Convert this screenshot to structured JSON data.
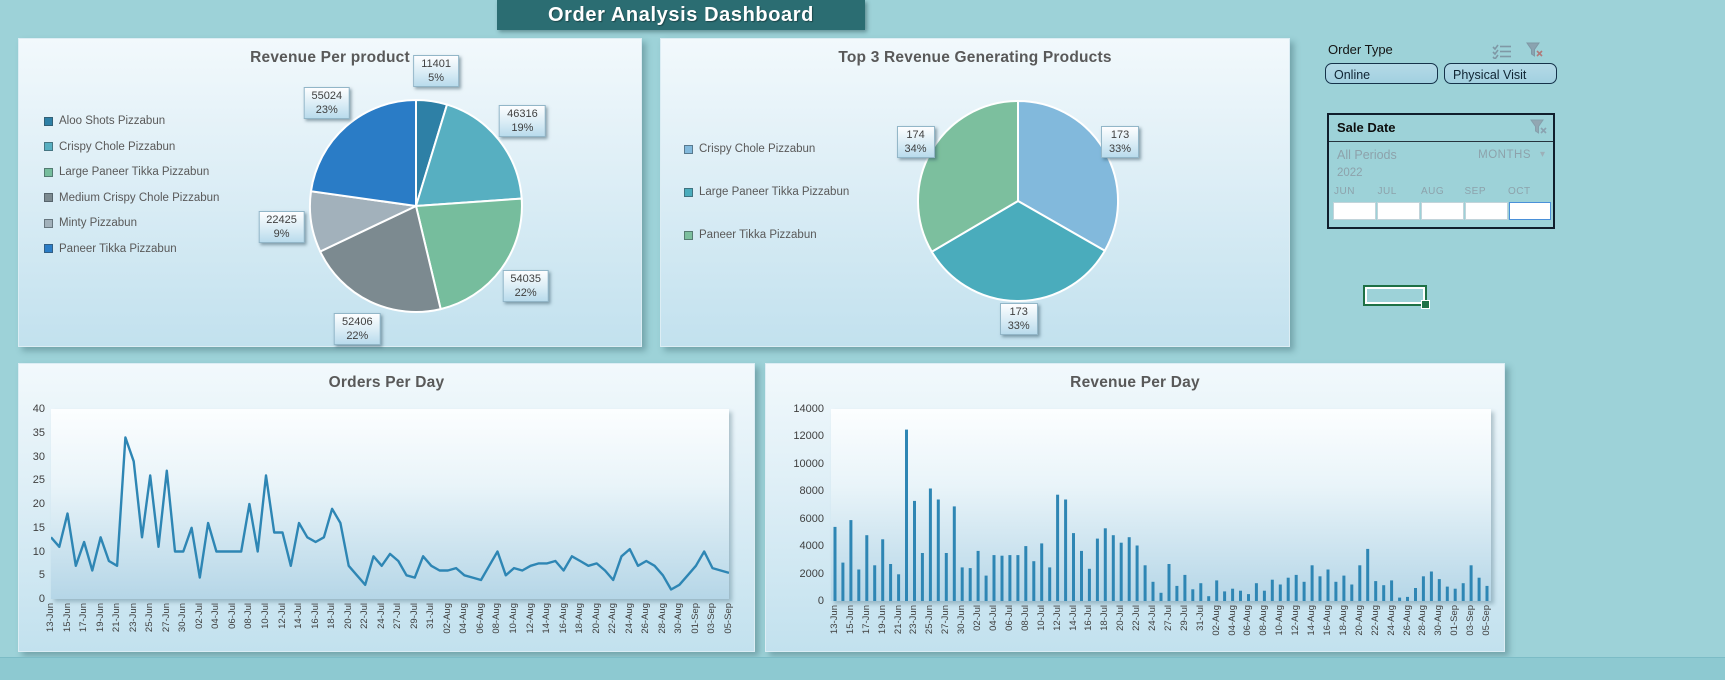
{
  "page": {
    "title": "Order Analysis Dashboard"
  },
  "colors": {
    "page_background": "#9dd2d8",
    "title_bar": "#2b6d72",
    "series_blue": "#2e86b4",
    "selection_green": "#1e7145"
  },
  "slicers": {
    "order_type": {
      "title": "Order Type",
      "buttons": [
        {
          "label": "Online",
          "selected": true
        },
        {
          "label": "Physical Visit",
          "selected": true
        }
      ]
    },
    "sale_date": {
      "title": "Sale Date",
      "period_label": "All Periods",
      "granularity": "MONTHS",
      "dropdown_arrow": "▾",
      "year": "2022",
      "months": [
        "JUN",
        "JUL",
        "AUG",
        "SEP",
        "OCT"
      ]
    }
  },
  "chart_data": [
    {
      "id": "revenue-per-product",
      "type": "pie",
      "title": "Revenue Per product",
      "categories": [
        "Aloo Shots Pizzabun",
        "Crispy Chole Pizzabun",
        "Large Paneer Tikka Pizzabun",
        "Medium Crispy Chole Pizzabun",
        "Minty Pizzabun",
        "Paneer Tikka Pizzabun"
      ],
      "values": [
        11401,
        46316,
        54035,
        52406,
        22425,
        55024
      ],
      "point_labels": [
        {
          "value": "11401",
          "pct": "5%"
        },
        {
          "value": "46316",
          "pct": "19%"
        },
        {
          "value": "54035",
          "pct": "22%"
        },
        {
          "value": "52406",
          "pct": "22%"
        },
        {
          "value": "22425",
          "pct": "9%"
        },
        {
          "value": "55024",
          "pct": "23%"
        }
      ],
      "colors": [
        "#2e80a6",
        "#57afc1",
        "#76bd9d",
        "#7c8a90",
        "#a2b1bb",
        "#2a7cc6"
      ],
      "legend_position": "left"
    },
    {
      "id": "top-3-revenue-generating-products",
      "type": "pie",
      "title": "Top 3 Revenue Generating Products",
      "categories": [
        "Crispy Chole Pizzabun",
        "Large Paneer Tikka Pizzabun",
        "Paneer Tikka Pizzabun"
      ],
      "values": [
        173,
        173,
        174
      ],
      "point_labels": [
        {
          "value": "173",
          "pct": "33%"
        },
        {
          "value": "173",
          "pct": "33%"
        },
        {
          "value": "174",
          "pct": "34%"
        }
      ],
      "colors": [
        "#82b9dc",
        "#4aacbc",
        "#7cbf9e"
      ],
      "legend_position": "left"
    },
    {
      "id": "orders-per-day",
      "type": "line",
      "title": "Orders Per Day",
      "x_labels": [
        "13-Jun",
        "15-Jun",
        "17-Jun",
        "19-Jun",
        "21-Jun",
        "23-Jun",
        "25-Jun",
        "27-Jun",
        "30-Jun",
        "02-Jul",
        "04-Jul",
        "06-Jul",
        "08-Jul",
        "10-Jul",
        "12-Jul",
        "14-Jul",
        "16-Jul",
        "18-Jul",
        "20-Jul",
        "22-Jul",
        "24-Jul",
        "27-Jul",
        "29-Jul",
        "31-Jul",
        "02-Aug",
        "04-Aug",
        "06-Aug",
        "08-Aug",
        "10-Aug",
        "12-Aug",
        "14-Aug",
        "16-Aug",
        "18-Aug",
        "20-Aug",
        "22-Aug",
        "24-Aug",
        "26-Aug",
        "28-Aug",
        "30-Aug",
        "01-Sep",
        "03-Sep",
        "05-Sep"
      ],
      "label_every": 2,
      "values": [
        13,
        11,
        18,
        7,
        12,
        6,
        13,
        8,
        7,
        34,
        29,
        13,
        26,
        11,
        27,
        10,
        10,
        15,
        4.5,
        16,
        10,
        10,
        10,
        10,
        20,
        10,
        26,
        14,
        14,
        7,
        16,
        13,
        12,
        13,
        19,
        16,
        7,
        5,
        3,
        9,
        7,
        9.5,
        8,
        5,
        4.5,
        9,
        7,
        6,
        6,
        6.5,
        5,
        4.5,
        4,
        7,
        10,
        5,
        6.5,
        6,
        7,
        7.5,
        7.5,
        8,
        6,
        9,
        8,
        7,
        7.5,
        6,
        4,
        9,
        10.5,
        7,
        8,
        7,
        5,
        2,
        3,
        5,
        7,
        10,
        6.5,
        6,
        5.5
      ],
      "xlabel": "",
      "ylabel": "",
      "ylim": [
        0,
        40
      ],
      "ytick_step": 5,
      "grid": false,
      "line_color": "#2e86b4"
    },
    {
      "id": "revenue-per-day",
      "type": "bar",
      "title": "Revenue Per Day",
      "x_labels": [
        "13-Jun",
        "15-Jun",
        "17-Jun",
        "19-Jun",
        "21-Jun",
        "23-Jun",
        "25-Jun",
        "27-Jun",
        "30-Jun",
        "02-Jul",
        "04-Jul",
        "06-Jul",
        "08-Jul",
        "10-Jul",
        "12-Jul",
        "14-Jul",
        "16-Jul",
        "18-Jul",
        "20-Jul",
        "22-Jul",
        "24-Jul",
        "27-Jul",
        "29-Jul",
        "31-Jul",
        "02-Aug",
        "04-Aug",
        "06-Aug",
        "08-Aug",
        "10-Aug",
        "12-Aug",
        "14-Aug",
        "16-Aug",
        "18-Aug",
        "20-Aug",
        "22-Aug",
        "24-Aug",
        "26-Aug",
        "28-Aug",
        "30-Aug",
        "01-Sep",
        "03-Sep",
        "05-Sep"
      ],
      "label_every": 2,
      "values": [
        5400,
        2800,
        5900,
        2300,
        4800,
        2600,
        4500,
        2700,
        1950,
        12500,
        7300,
        3500,
        8200,
        7400,
        3500,
        6900,
        2450,
        2400,
        3650,
        1850,
        3350,
        3300,
        3350,
        3350,
        4000,
        2900,
        4200,
        2450,
        7750,
        7400,
        4950,
        3650,
        2350,
        4550,
        5300,
        4800,
        4250,
        4650,
        4050,
        2600,
        1400,
        600,
        2700,
        1100,
        1900,
        850,
        1300,
        350,
        1500,
        700,
        900,
        750,
        500,
        1300,
        750,
        1550,
        1200,
        1700,
        1900,
        1400,
        2600,
        1800,
        2300,
        1400,
        1850,
        1200,
        2600,
        3800,
        1450,
        1150,
        1500,
        250,
        300,
        950,
        1800,
        2150,
        1600,
        1050,
        900,
        1300,
        2600,
        1700,
        1100
      ],
      "xlabel": "",
      "ylabel": "",
      "ylim": [
        0,
        14000
      ],
      "ytick_step": 2000,
      "grid": false,
      "bar_color": "#2e86b4"
    }
  ]
}
